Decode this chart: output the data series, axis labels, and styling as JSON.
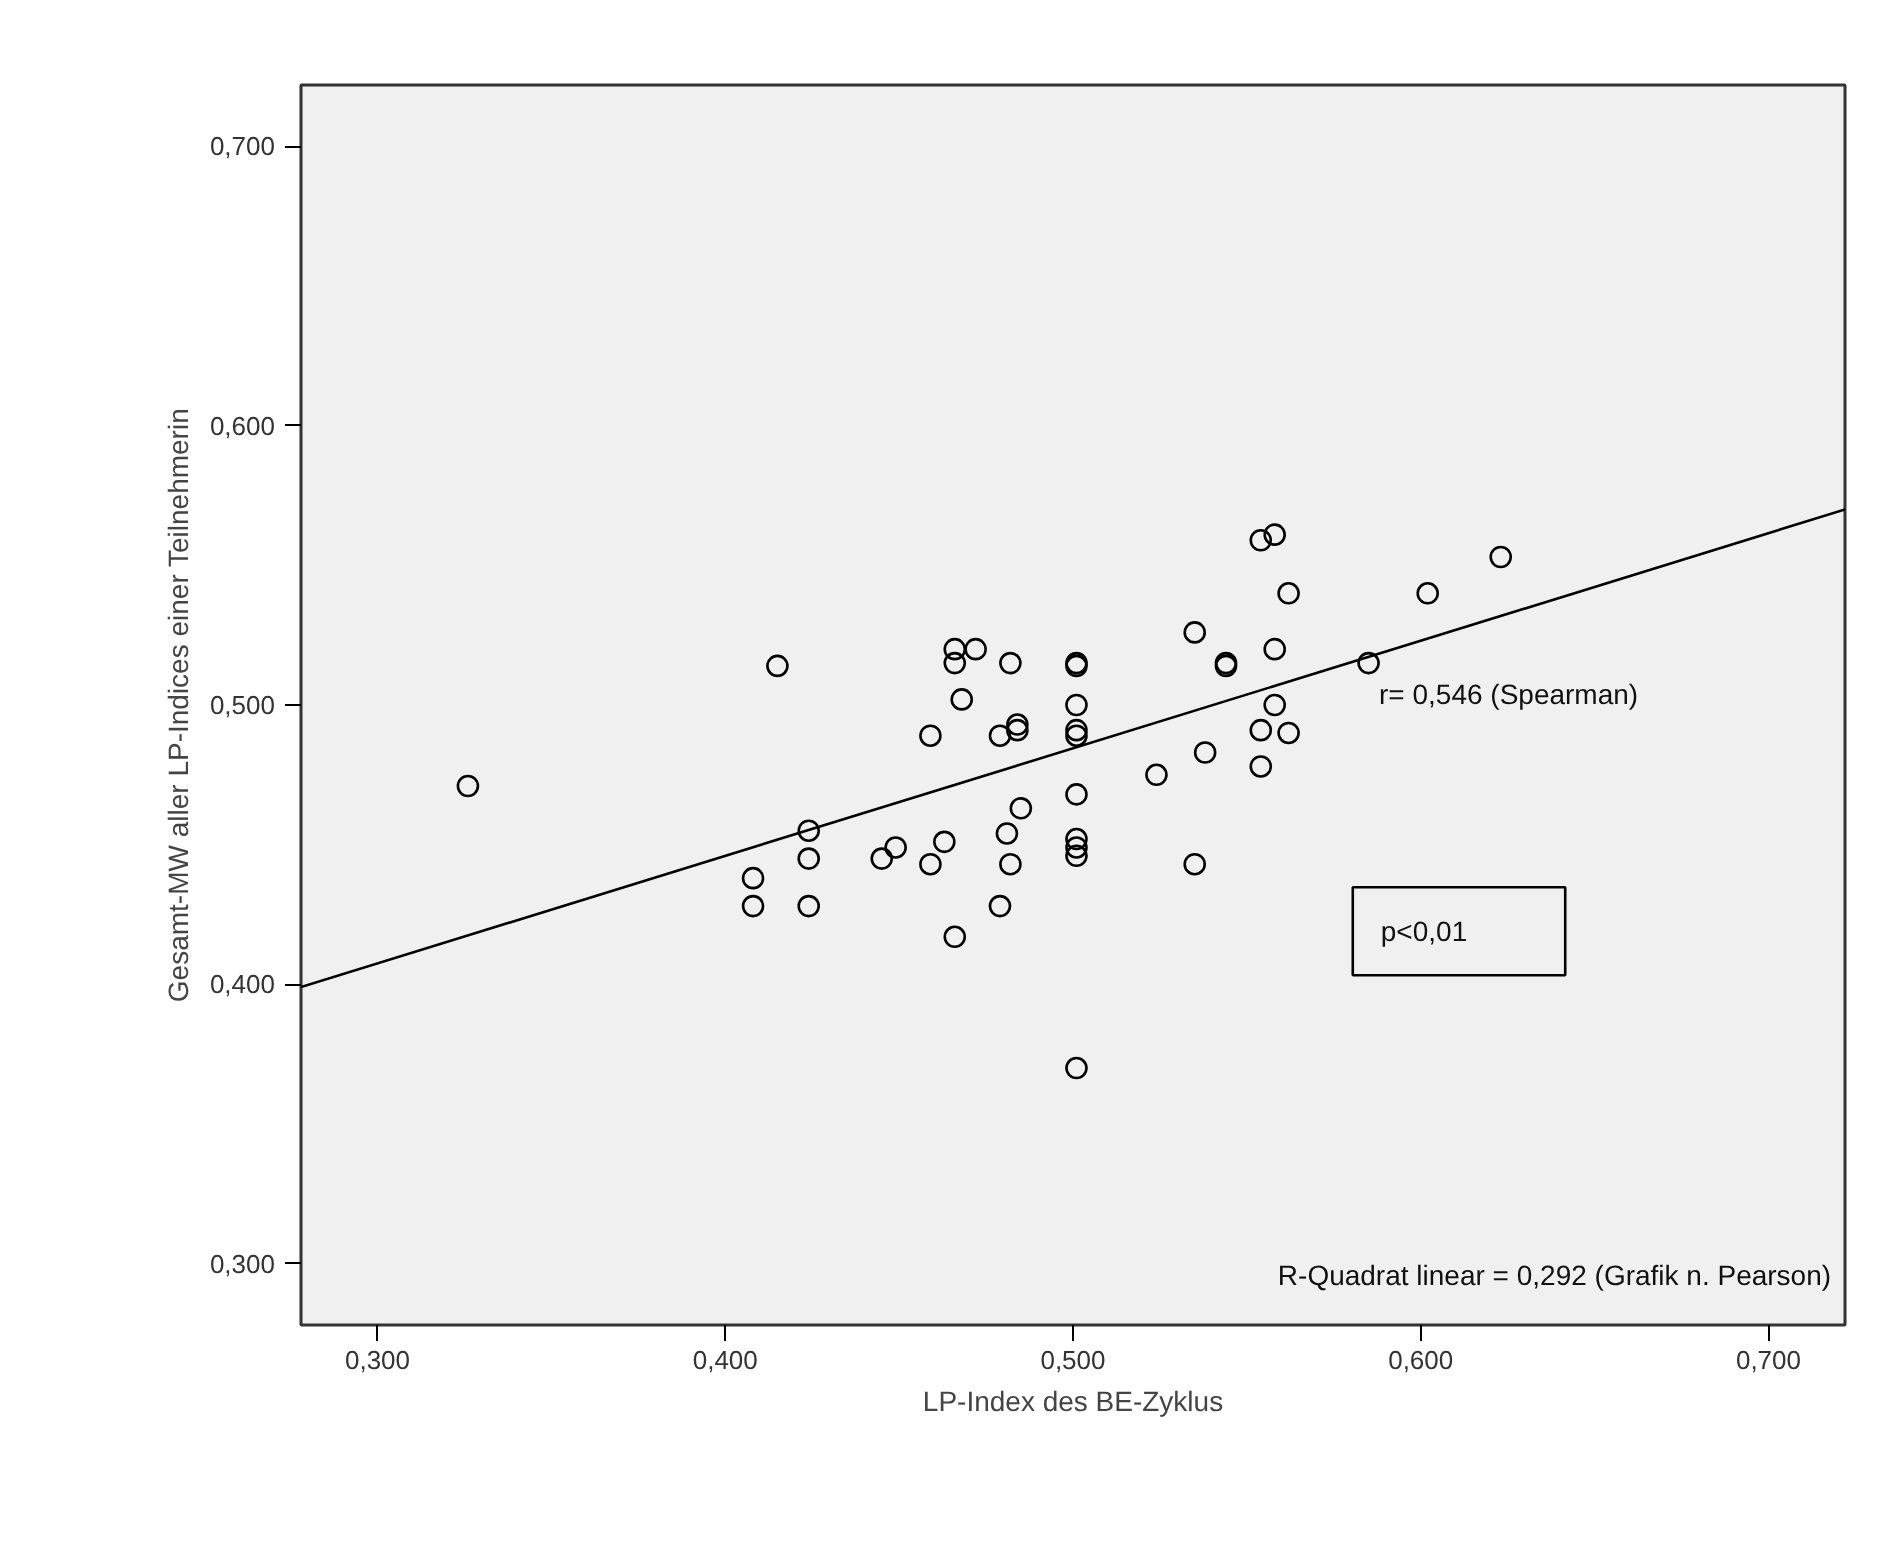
{
  "chart_data": {
    "type": "scatter",
    "xlabel": "LP-Index des BE-Zyklus",
    "ylabel": "Gesamt-MW aller LP-Indices einer Teilnehmerin",
    "xlim": [
      0.278,
      0.722
    ],
    "ylim": [
      0.278,
      0.722
    ],
    "xticks": [
      {
        "value": 0.3,
        "label": "0,300"
      },
      {
        "value": 0.4,
        "label": "0,400"
      },
      {
        "value": 0.5,
        "label": "0,500"
      },
      {
        "value": 0.6,
        "label": "0,600"
      },
      {
        "value": 0.7,
        "label": "0,700"
      }
    ],
    "yticks": [
      {
        "value": 0.3,
        "label": "0,300"
      },
      {
        "value": 0.4,
        "label": "0,400"
      },
      {
        "value": 0.5,
        "label": "0,500"
      },
      {
        "value": 0.6,
        "label": "0,600"
      },
      {
        "value": 0.7,
        "label": "0,700"
      }
    ],
    "grid": false,
    "series": [
      {
        "color": "#000000",
        "marker": "circle",
        "x": [
          0.326,
          0.415,
          0.466,
          0.466,
          0.472,
          0.482,
          0.501,
          0.501,
          0.468,
          0.459,
          0.479,
          0.484,
          0.484,
          0.501,
          0.501,
          0.501,
          0.535,
          0.544,
          0.544,
          0.538,
          0.524,
          0.501,
          0.485,
          0.424,
          0.424,
          0.408,
          0.408,
          0.424,
          0.445,
          0.449,
          0.463,
          0.459,
          0.481,
          0.482,
          0.479,
          0.501,
          0.501,
          0.501,
          0.535,
          0.466,
          0.554,
          0.558,
          0.562,
          0.602,
          0.623,
          0.558,
          0.585,
          0.558,
          0.554,
          0.562,
          0.554,
          0.501
        ],
        "values": [
          0.471,
          0.514,
          0.52,
          0.515,
          0.52,
          0.515,
          0.515,
          0.514,
          0.502,
          0.489,
          0.489,
          0.493,
          0.491,
          0.5,
          0.491,
          0.489,
          0.526,
          0.515,
          0.514,
          0.483,
          0.475,
          0.468,
          0.463,
          0.455,
          0.445,
          0.438,
          0.428,
          0.428,
          0.445,
          0.449,
          0.451,
          0.443,
          0.454,
          0.443,
          0.428,
          0.452,
          0.449,
          0.446,
          0.443,
          0.417,
          0.559,
          0.561,
          0.54,
          0.54,
          0.553,
          0.52,
          0.515,
          0.5,
          0.491,
          0.49,
          0.478,
          0.37
        ]
      },
      {
        "type": "line",
        "color": "#000000",
        "line_style": "solid",
        "x": [
          0.278,
          0.722
        ],
        "values": [
          0.399,
          0.57
        ]
      }
    ],
    "annotations": [
      "r= 0,546 (Spearman)",
      "p<0,01",
      "R-Quadrat linear = 0,292 (Grafik n. Pearson)"
    ]
  }
}
